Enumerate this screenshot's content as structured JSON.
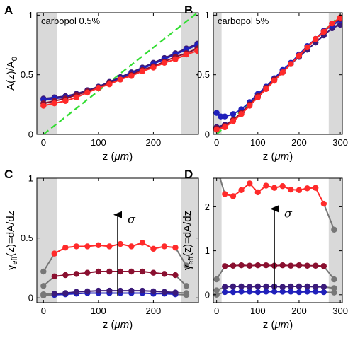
{
  "chart_data": [
    {
      "panel": "A",
      "type": "line",
      "annotation": "carbopol 0.5%",
      "xlabel_main": "z (",
      "xlabel_unit": "μm",
      "xlabel_end": ")",
      "ylabel_main": "A(z)/A",
      "ylabel_sub": "0",
      "xlim": [
        -12,
        282
      ],
      "ylim": [
        0,
        1.02
      ],
      "xticks": [
        0,
        100,
        200
      ],
      "yticks": [
        0,
        0.5,
        1
      ],
      "ytick_labels": [
        "0",
        "0.5",
        "1"
      ],
      "shaded_x": [
        [
          -12,
          25
        ],
        [
          250,
          282
        ]
      ],
      "reference_line": {
        "color": "#33dd33",
        "x": [
          0,
          280
        ],
        "y": [
          0,
          1.02
        ]
      },
      "series": [
        {
          "color": "#3a1a7a",
          "x": [
            0,
            20,
            40,
            60,
            80,
            100,
            120,
            140,
            160,
            180,
            200,
            220,
            240,
            260,
            280
          ],
          "y": [
            0.3,
            0.31,
            0.32,
            0.34,
            0.37,
            0.4,
            0.44,
            0.48,
            0.52,
            0.56,
            0.6,
            0.64,
            0.68,
            0.72,
            0.76
          ]
        },
        {
          "color": "#2020bb",
          "x": [
            0,
            20,
            40,
            60,
            80,
            100,
            120,
            140,
            160,
            180,
            200,
            220,
            240,
            260,
            280
          ],
          "y": [
            0.29,
            0.3,
            0.31,
            0.33,
            0.36,
            0.39,
            0.43,
            0.47,
            0.51,
            0.55,
            0.59,
            0.63,
            0.67,
            0.71,
            0.75
          ]
        },
        {
          "color": "#8a1030",
          "x": [
            0,
            20,
            40,
            60,
            80,
            100,
            120,
            140,
            160,
            180,
            200,
            220,
            240,
            260,
            280
          ],
          "y": [
            0.26,
            0.28,
            0.3,
            0.33,
            0.36,
            0.39,
            0.43,
            0.46,
            0.5,
            0.54,
            0.57,
            0.61,
            0.65,
            0.68,
            0.72
          ]
        },
        {
          "color": "#ff2a2a",
          "x": [
            0,
            20,
            40,
            60,
            80,
            100,
            120,
            140,
            160,
            180,
            200,
            220,
            240,
            260,
            280
          ],
          "y": [
            0.24,
            0.26,
            0.28,
            0.31,
            0.35,
            0.39,
            0.42,
            0.46,
            0.49,
            0.53,
            0.56,
            0.6,
            0.63,
            0.67,
            0.7
          ]
        }
      ]
    },
    {
      "panel": "B",
      "type": "line",
      "annotation": "carbopol 5%",
      "xlabel_main": "z (",
      "xlabel_unit": "μm",
      "xlabel_end": ")",
      "ylabel_main": "",
      "ylabel_sub": "",
      "xlim": [
        -8,
        305
      ],
      "ylim": [
        0,
        1.02
      ],
      "xticks": [
        0,
        100,
        200,
        300
      ],
      "yticks": [
        0,
        0.5,
        1
      ],
      "ytick_labels": [
        "0",
        "0.5",
        "1"
      ],
      "shaded_x": [
        [
          -8,
          12
        ],
        [
          272,
          305
        ]
      ],
      "reference_line": {
        "color": "#33dd33",
        "x": [
          0,
          300
        ],
        "y": [
          0,
          1.0
        ]
      },
      "series": [
        {
          "color": "#3a1a7a",
          "x": [
            0,
            20,
            40,
            60,
            80,
            100,
            120,
            140,
            160,
            180,
            200,
            220,
            240,
            260,
            280,
            300
          ],
          "y": [
            0.06,
            0.08,
            0.12,
            0.18,
            0.25,
            0.32,
            0.39,
            0.46,
            0.52,
            0.59,
            0.65,
            0.71,
            0.77,
            0.83,
            0.89,
            0.92
          ]
        },
        {
          "color": "#2020bb",
          "x": [
            0,
            10,
            20,
            40,
            60,
            80,
            100,
            120,
            140,
            160,
            180,
            200,
            220,
            240,
            260,
            280,
            300
          ],
          "y": [
            0.18,
            0.15,
            0.15,
            0.17,
            0.21,
            0.27,
            0.34,
            0.4,
            0.47,
            0.54,
            0.6,
            0.67,
            0.74,
            0.8,
            0.87,
            0.91,
            0.96
          ]
        },
        {
          "color": "#8a1030",
          "x": [
            0,
            20,
            40,
            60,
            80,
            100,
            120,
            140,
            160,
            180,
            200,
            220,
            240,
            260,
            280,
            300
          ],
          "y": [
            0.05,
            0.07,
            0.12,
            0.18,
            0.25,
            0.32,
            0.39,
            0.46,
            0.52,
            0.59,
            0.66,
            0.73,
            0.8,
            0.86,
            0.93,
            0.97
          ]
        },
        {
          "color": "#ff2a2a",
          "x": [
            0,
            20,
            40,
            60,
            80,
            100,
            120,
            140,
            160,
            180,
            200,
            220,
            240,
            260,
            280,
            300
          ],
          "y": [
            0.04,
            0.06,
            0.11,
            0.17,
            0.24,
            0.31,
            0.38,
            0.45,
            0.52,
            0.59,
            0.66,
            0.73,
            0.8,
            0.86,
            0.93,
            0.98
          ]
        }
      ]
    },
    {
      "panel": "C",
      "type": "line",
      "annotation": "σ",
      "xlabel_main": "z (",
      "xlabel_unit": "μm",
      "xlabel_end": ")",
      "ylabel_main": "γ",
      "ylabel_sub": "eff",
      "ylabel_tail": "(z)=dA/dz",
      "xlim": [
        -12,
        282
      ],
      "ylim": [
        -0.04,
        1.0
      ],
      "xticks": [
        0,
        100,
        200
      ],
      "yticks": [
        0,
        0.5,
        1
      ],
      "ytick_labels": [
        "0",
        "0.5",
        "1"
      ],
      "shaded_x": [
        [
          -12,
          25
        ],
        [
          250,
          282
        ]
      ],
      "arrow": {
        "x": 135,
        "y0": 0.02,
        "y1": 0.73
      },
      "series": [
        {
          "color": "#2020bb",
          "edge_color": "#777777",
          "x": [
            0,
            20,
            40,
            60,
            80,
            100,
            120,
            140,
            160,
            180,
            200,
            220,
            240,
            260
          ],
          "y": [
            0.02,
            0.025,
            0.03,
            0.035,
            0.04,
            0.04,
            0.04,
            0.04,
            0.04,
            0.04,
            0.035,
            0.035,
            0.03,
            0.025
          ]
        },
        {
          "color": "#3a1a7a",
          "edge_color": "#777777",
          "x": [
            0,
            20,
            40,
            60,
            80,
            100,
            120,
            140,
            160,
            180,
            200,
            220,
            240,
            260
          ],
          "y": [
            0.03,
            0.035,
            0.04,
            0.05,
            0.055,
            0.06,
            0.06,
            0.06,
            0.06,
            0.06,
            0.055,
            0.05,
            0.045,
            0.04
          ]
        },
        {
          "color": "#8a1030",
          "edge_color": "#777777",
          "x": [
            0,
            20,
            40,
            60,
            80,
            100,
            120,
            140,
            160,
            180,
            200,
            220,
            240,
            260
          ],
          "y": [
            0.1,
            0.18,
            0.19,
            0.2,
            0.21,
            0.22,
            0.22,
            0.22,
            0.22,
            0.22,
            0.21,
            0.2,
            0.19,
            0.1
          ]
        },
        {
          "color": "#ff2a2a",
          "edge_color": "#777777",
          "x": [
            0,
            20,
            40,
            60,
            80,
            100,
            120,
            140,
            160,
            180,
            200,
            220,
            240,
            260
          ],
          "y": [
            0.22,
            0.37,
            0.42,
            0.43,
            0.43,
            0.44,
            0.43,
            0.45,
            0.43,
            0.46,
            0.41,
            0.43,
            0.42,
            0.27
          ]
        }
      ]
    },
    {
      "panel": "D",
      "type": "line",
      "annotation": "σ",
      "xlabel_main": "z (",
      "xlabel_unit": "μm",
      "xlabel_end": ")",
      "ylabel_main": "γ",
      "ylabel_sub": "eff",
      "ylabel_tail": "(z)=dA/dz",
      "xlim": [
        -8,
        305
      ],
      "ylim": [
        -0.18,
        2.65
      ],
      "xticks": [
        0,
        100,
        200,
        300
      ],
      "yticks": [
        0,
        1,
        2
      ],
      "ytick_labels": [
        "0",
        "1",
        "2"
      ],
      "shaded_x": [
        [
          -8,
          12
        ],
        [
          272,
          305
        ]
      ],
      "arrow": {
        "x": 140,
        "y0": 0.12,
        "y1": 2.05
      },
      "series": [
        {
          "color": "#2020bb",
          "edge_color": "#777777",
          "x": [
            0,
            20,
            40,
            60,
            80,
            100,
            120,
            140,
            160,
            180,
            200,
            220,
            240,
            260,
            285
          ],
          "y": [
            0.0,
            0.06,
            0.06,
            0.07,
            0.07,
            0.06,
            0.07,
            0.07,
            0.07,
            0.07,
            0.06,
            0.07,
            0.07,
            0.06,
            0.05
          ]
        },
        {
          "color": "#3a1a7a",
          "edge_color": "#777777",
          "x": [
            0,
            20,
            40,
            60,
            80,
            100,
            120,
            140,
            160,
            180,
            200,
            220,
            240,
            260,
            285
          ],
          "y": [
            0.1,
            0.18,
            0.19,
            0.19,
            0.18,
            0.19,
            0.19,
            0.19,
            0.18,
            0.19,
            0.19,
            0.19,
            0.18,
            0.18,
            0.15
          ]
        },
        {
          "color": "#8a1030",
          "edge_color": "#777777",
          "x": [
            0,
            20,
            40,
            60,
            80,
            100,
            120,
            140,
            160,
            180,
            200,
            220,
            240,
            260,
            285
          ],
          "y": [
            0.35,
            0.65,
            0.66,
            0.67,
            0.66,
            0.67,
            0.67,
            0.66,
            0.67,
            0.66,
            0.67,
            0.66,
            0.66,
            0.65,
            0.35
          ]
        },
        {
          "color": "#ff2a2a",
          "edge_color": "#777777",
          "x": [
            0,
            20,
            40,
            60,
            80,
            100,
            120,
            140,
            160,
            180,
            200,
            220,
            240,
            260,
            285
          ],
          "y": [
            2.9,
            2.29,
            2.24,
            2.38,
            2.53,
            2.33,
            2.48,
            2.43,
            2.47,
            2.39,
            2.38,
            2.42,
            2.43,
            2.07,
            1.48
          ]
        }
      ]
    }
  ]
}
